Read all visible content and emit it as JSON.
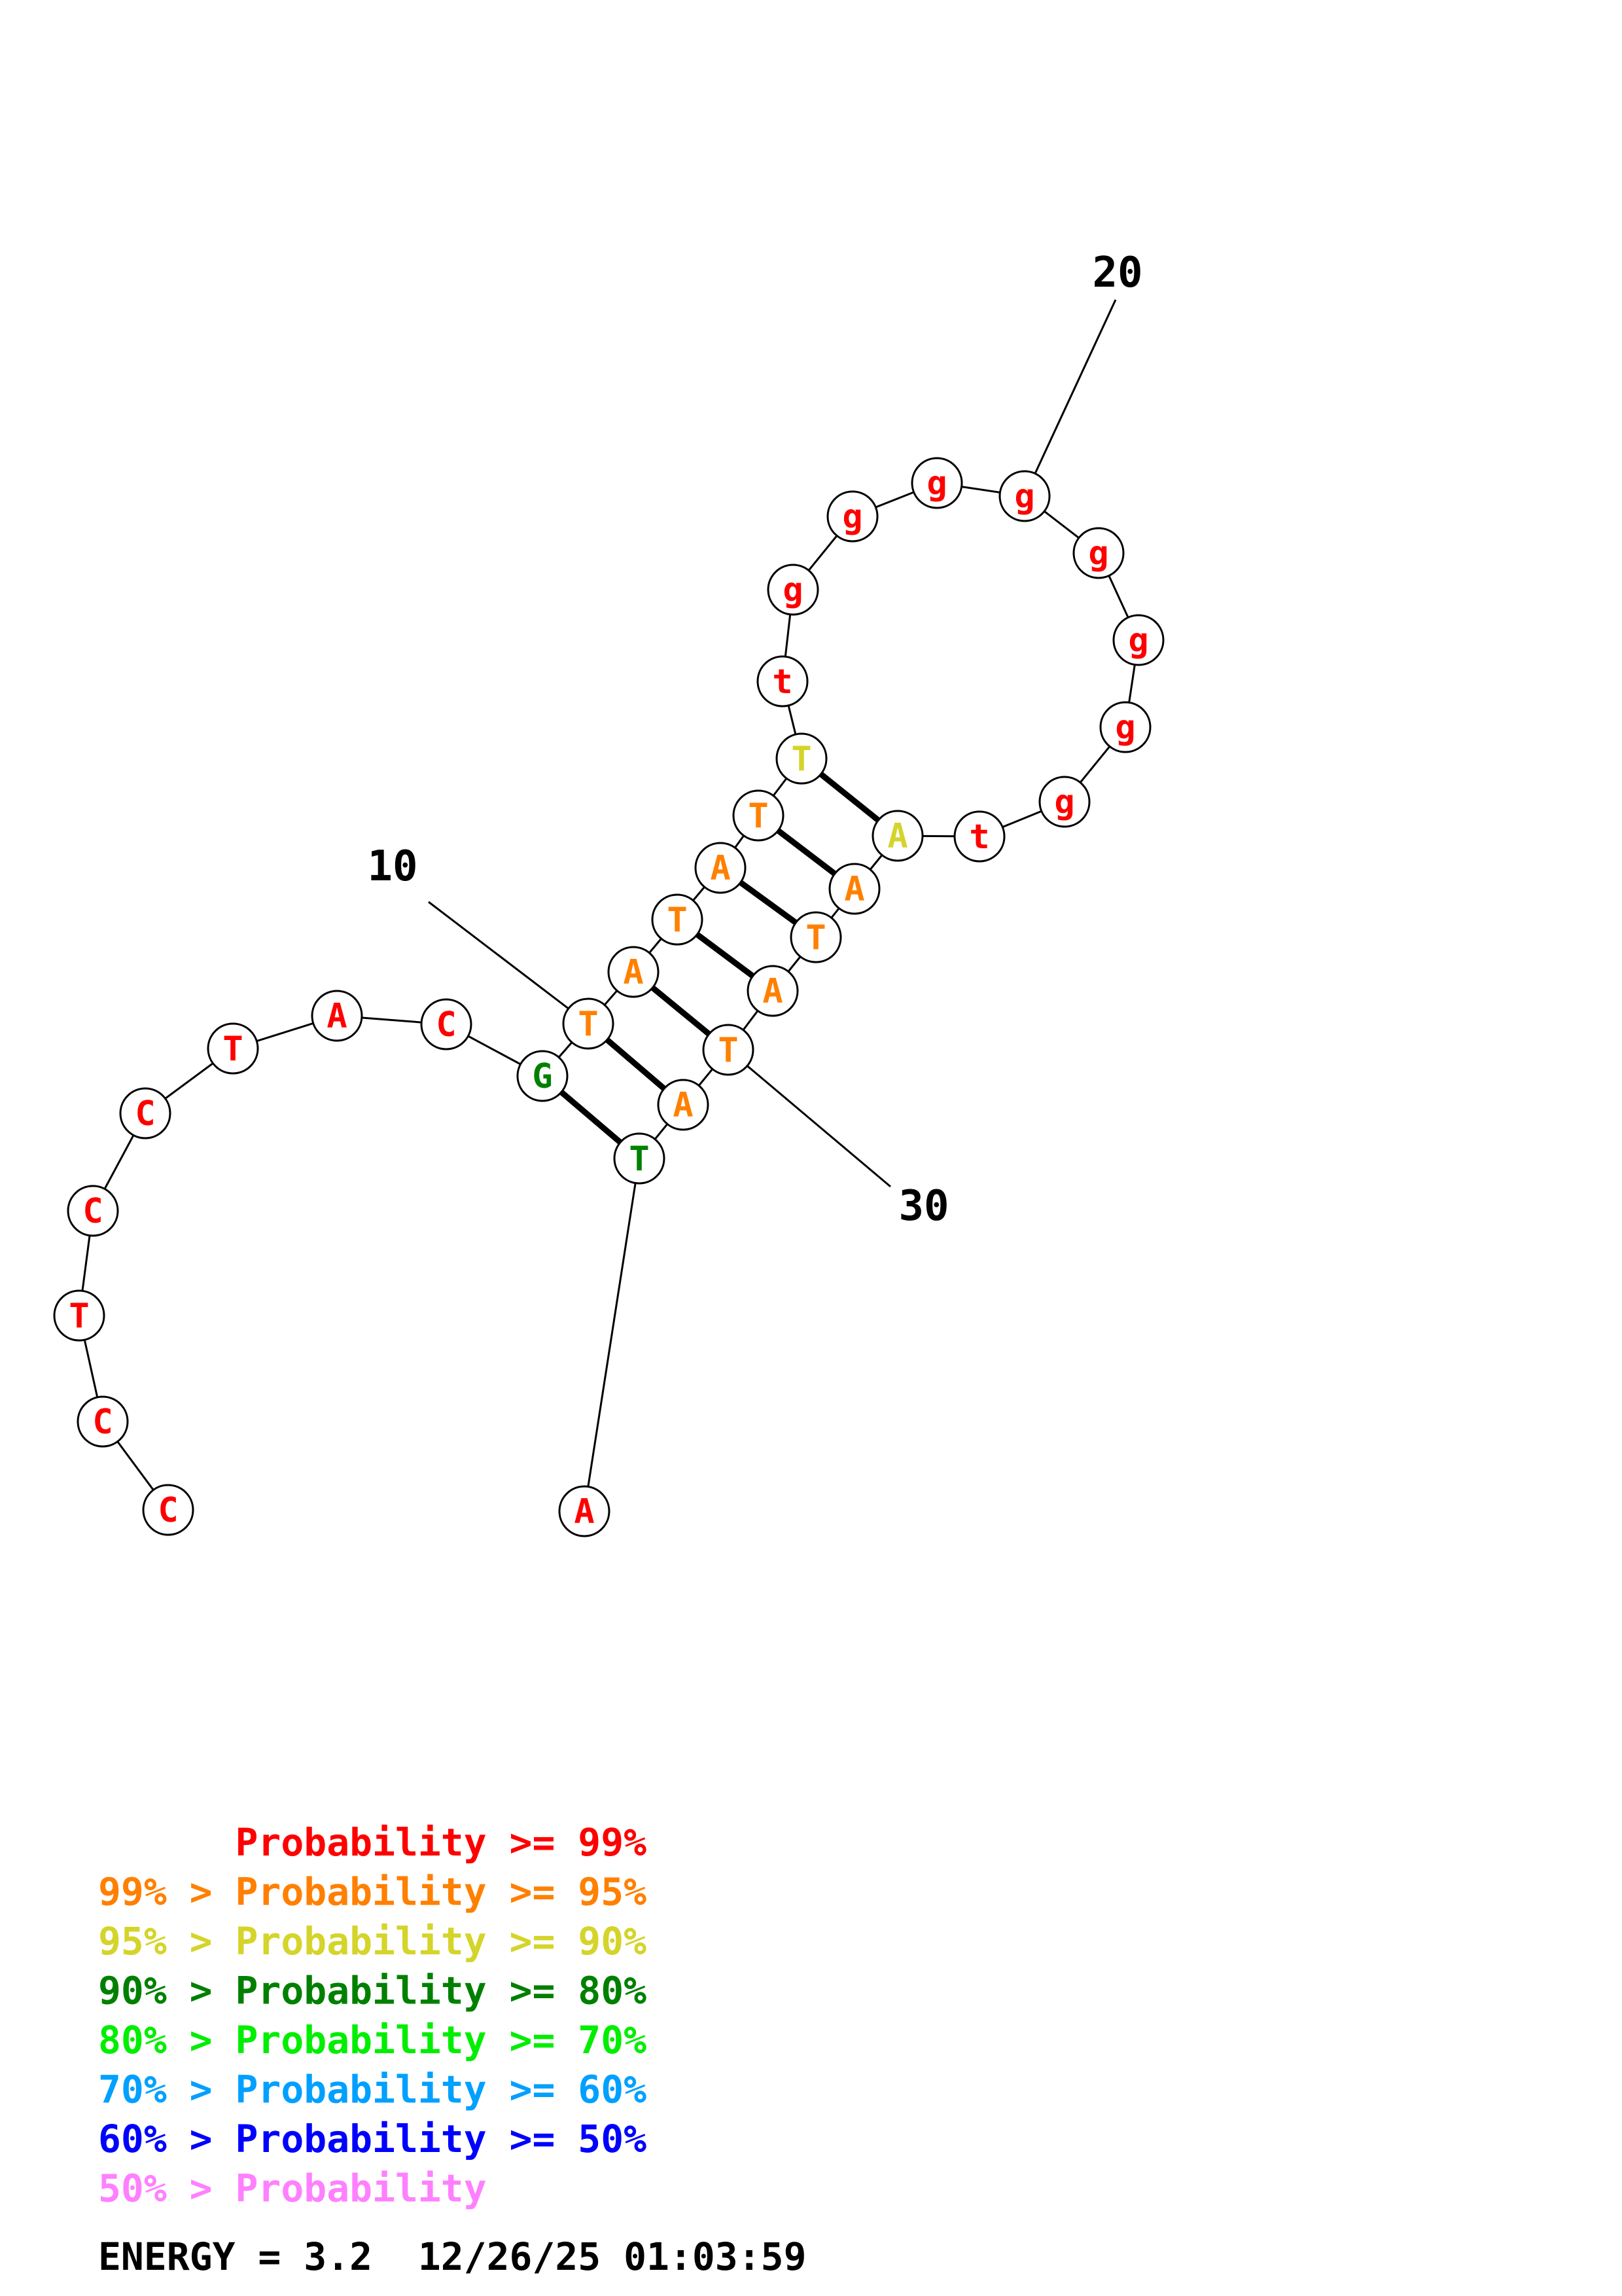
{
  "colors": {
    "p99": "#ff0000",
    "p95": "#ff8000",
    "p90": "#d4d42a",
    "p80": "#008000",
    "p70": "#00ee00",
    "p60": "#00a0ff",
    "p50": "#0000ff",
    "plow": "#ff80ff",
    "line": "#000000"
  },
  "nucleotides": [
    {
      "n": 1,
      "base": "C",
      "prob": "p99"
    },
    {
      "n": 2,
      "base": "C",
      "prob": "p99"
    },
    {
      "n": 3,
      "base": "T",
      "prob": "p99"
    },
    {
      "n": 4,
      "base": "C",
      "prob": "p99"
    },
    {
      "n": 5,
      "base": "C",
      "prob": "p99"
    },
    {
      "n": 6,
      "base": "T",
      "prob": "p99"
    },
    {
      "n": 7,
      "base": "A",
      "prob": "p99"
    },
    {
      "n": 8,
      "base": "C",
      "prob": "p99"
    },
    {
      "n": 9,
      "base": "G",
      "prob": "p80"
    },
    {
      "n": 10,
      "base": "T",
      "prob": "p95"
    },
    {
      "n": 11,
      "base": "A",
      "prob": "p95"
    },
    {
      "n": 12,
      "base": "T",
      "prob": "p95"
    },
    {
      "n": 13,
      "base": "A",
      "prob": "p95"
    },
    {
      "n": 14,
      "base": "T",
      "prob": "p95"
    },
    {
      "n": 15,
      "base": "T",
      "prob": "p90"
    },
    {
      "n": 16,
      "base": "t",
      "prob": "p99"
    },
    {
      "n": 17,
      "base": "g",
      "prob": "p99"
    },
    {
      "n": 18,
      "base": "g",
      "prob": "p99"
    },
    {
      "n": 19,
      "base": "g",
      "prob": "p99"
    },
    {
      "n": 20,
      "base": "g",
      "prob": "p99"
    },
    {
      "n": 21,
      "base": "g",
      "prob": "p99"
    },
    {
      "n": 22,
      "base": "g",
      "prob": "p99"
    },
    {
      "n": 23,
      "base": "g",
      "prob": "p99"
    },
    {
      "n": 24,
      "base": "g",
      "prob": "p99"
    },
    {
      "n": 25,
      "base": "t",
      "prob": "p99"
    },
    {
      "n": 26,
      "base": "A",
      "prob": "p90"
    },
    {
      "n": 27,
      "base": "A",
      "prob": "p95"
    },
    {
      "n": 28,
      "base": "T",
      "prob": "p95"
    },
    {
      "n": 29,
      "base": "A",
      "prob": "p95"
    },
    {
      "n": 30,
      "base": "T",
      "prob": "p95"
    },
    {
      "n": 31,
      "base": "A",
      "prob": "p95"
    },
    {
      "n": 32,
      "base": "T",
      "prob": "p80"
    },
    {
      "n": 33,
      "base": "A",
      "prob": "p99"
    }
  ],
  "pairs": [
    [
      9,
      32
    ],
    [
      10,
      31
    ],
    [
      11,
      30
    ],
    [
      12,
      29
    ],
    [
      13,
      28
    ],
    [
      14,
      27
    ],
    [
      15,
      26
    ]
  ],
  "position_labels": [
    {
      "n": 10,
      "text": "10"
    },
    {
      "n": 20,
      "text": "20"
    },
    {
      "n": 30,
      "text": "30"
    }
  ],
  "legend": [
    {
      "text": "      Probability >= 99%",
      "prob": "p99"
    },
    {
      "text": "99% > Probability >= 95%",
      "prob": "p95"
    },
    {
      "text": "95% > Probability >= 90%",
      "prob": "p90"
    },
    {
      "text": "90% > Probability >= 80%",
      "prob": "p80"
    },
    {
      "text": "80% > Probability >= 70%",
      "prob": "p70"
    },
    {
      "text": "70% > Probability >= 60%",
      "prob": "p60"
    },
    {
      "text": "60% > Probability >= 50%",
      "prob": "p50"
    },
    {
      "text": "50% > Probability",
      "prob": "plow"
    }
  ],
  "footer": {
    "energy": "ENERGY = 3.2  12/26/25 01:03:59"
  }
}
